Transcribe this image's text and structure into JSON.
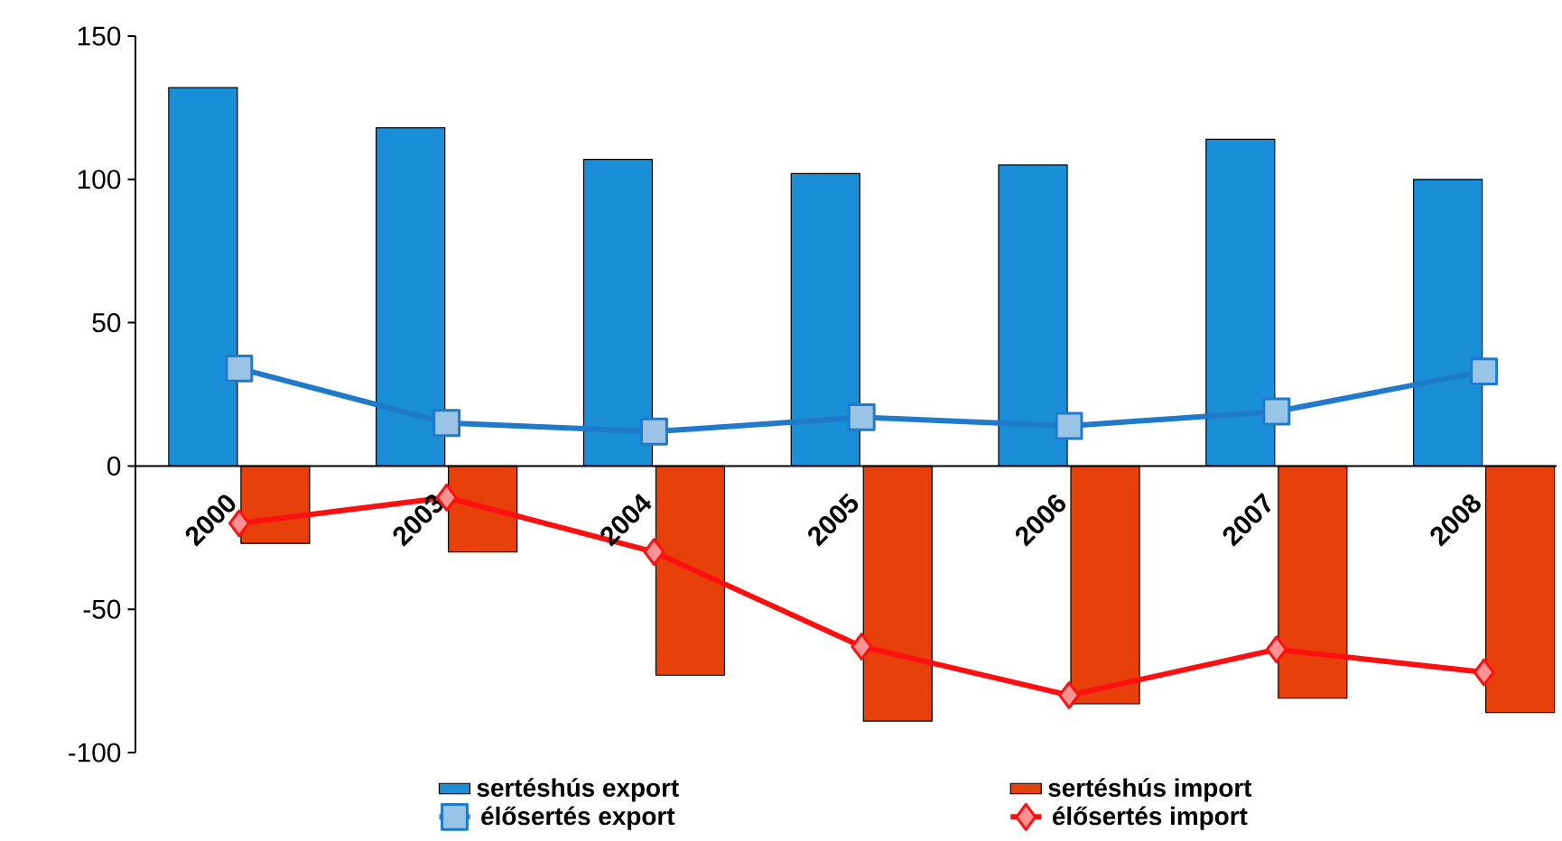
{
  "chart_data": {
    "type": "bar",
    "categories": [
      "2000",
      "2003",
      "2004",
      "2005",
      "2006",
      "2007",
      "2008"
    ],
    "ylim": [
      -100,
      150
    ],
    "yticks": [
      -100,
      -50,
      0,
      50,
      100,
      150
    ],
    "legend": "bottom",
    "series": [
      {
        "name": "sertéshús export",
        "color": "#1a8fd8",
        "values": [
          132,
          118,
          107,
          102,
          105,
          114,
          100
        ]
      },
      {
        "name": "sertéshús import",
        "color": "#e8400a",
        "values": [
          -27,
          -30,
          -73,
          -89,
          -83,
          -81,
          -86
        ]
      },
      {
        "name": "élősertés export",
        "type": "line",
        "marker": "square",
        "color": "#1f7acc",
        "values": [
          34,
          15,
          12,
          17,
          14,
          19,
          33
        ]
      },
      {
        "name": "élősertés import",
        "type": "line",
        "marker": "diamond",
        "color": "#ff1010",
        "values": [
          -20,
          -11,
          -30,
          -63,
          -80,
          -64,
          -72
        ]
      }
    ]
  }
}
